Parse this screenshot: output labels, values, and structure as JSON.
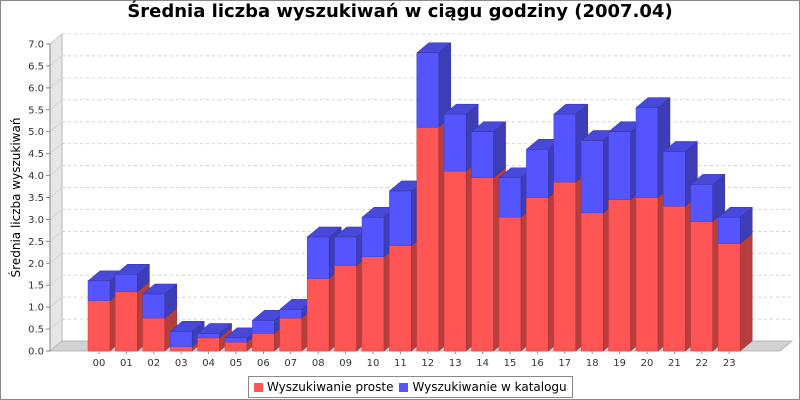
{
  "chart_data": {
    "type": "bar",
    "stacked": true,
    "title": "Średnia liczba wyszukiwań w ciągu godziny (2007.04)",
    "ylabel": "Średnia liczba wyszukiwań",
    "xlabel": "",
    "ylim": [
      0,
      7.0
    ],
    "yticks": [
      "0.0",
      "0.5",
      "1.0",
      "1.5",
      "2.0",
      "2.5",
      "3.0",
      "3.5",
      "4.0",
      "4.5",
      "5.0",
      "5.5",
      "6.0",
      "6.5",
      "7.0"
    ],
    "grid": true,
    "legend_position": "bottom",
    "categories": [
      "00",
      "01",
      "02",
      "03",
      "04",
      "05",
      "06",
      "07",
      "08",
      "09",
      "10",
      "11",
      "12",
      "13",
      "14",
      "15",
      "16",
      "17",
      "18",
      "19",
      "20",
      "21",
      "22",
      "23"
    ],
    "series": [
      {
        "name": "Wyszukiwanie proste",
        "color": "#ff5555",
        "values": [
          1.15,
          1.35,
          0.75,
          0.1,
          0.3,
          0.2,
          0.4,
          0.75,
          1.65,
          1.95,
          2.15,
          2.4,
          5.1,
          4.1,
          3.95,
          3.05,
          3.5,
          3.85,
          3.15,
          3.45,
          3.5,
          3.3,
          2.95,
          2.45
        ]
      },
      {
        "name": "Wyszukiwanie w katalogu",
        "color": "#5555ff",
        "values": [
          0.45,
          0.4,
          0.55,
          0.35,
          0.1,
          0.1,
          0.3,
          0.2,
          0.95,
          0.65,
          0.9,
          1.25,
          1.7,
          1.3,
          1.05,
          0.9,
          1.1,
          1.55,
          1.65,
          1.55,
          2.05,
          1.25,
          0.85,
          0.6
        ]
      }
    ]
  }
}
